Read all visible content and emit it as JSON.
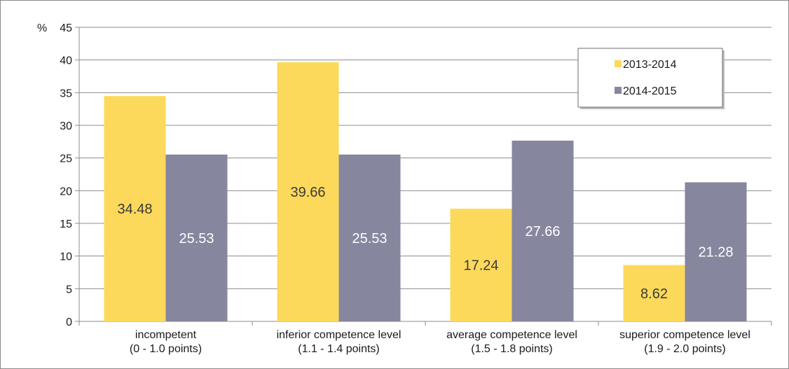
{
  "chart_data": {
    "type": "bar",
    "title": "",
    "xlabel": "",
    "ylabel": "%",
    "ylim": [
      0,
      45
    ],
    "yticks": [
      0,
      5,
      10,
      15,
      20,
      25,
      30,
      35,
      40,
      45
    ],
    "grid": true,
    "legend_position": "top-right",
    "categories": [
      [
        "incompetent",
        "(0 - 1.0 points)"
      ],
      [
        "inferior competence level",
        "(1.1 - 1.4 points)"
      ],
      [
        "average competence level",
        "(1.5 - 1.8 points)"
      ],
      [
        "superior competence level",
        "(1.9 - 2.0 points)"
      ]
    ],
    "series": [
      {
        "name": "2013-2014",
        "values": [
          34.48,
          39.66,
          17.24,
          8.62
        ],
        "labels": [
          "34.48",
          "39.66",
          "17.24",
          "8.62"
        ],
        "color": "#fcd95b",
        "label_color": "#3a3a3a"
      },
      {
        "name": "2014-2015",
        "values": [
          25.53,
          25.53,
          27.66,
          21.28
        ],
        "labels": [
          "25.53",
          "25.53",
          "27.66",
          "21.28"
        ],
        "color": "#86869e",
        "label_color": "#ffffff"
      }
    ]
  }
}
